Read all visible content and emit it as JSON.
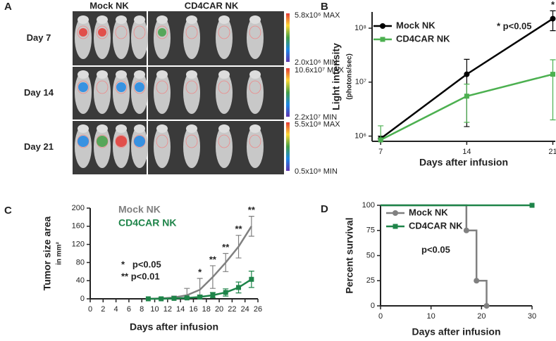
{
  "panel_a": {
    "letter": "A",
    "columns": [
      "Mock NK",
      "CD4CAR NK"
    ],
    "rows": [
      {
        "label": "Day 7",
        "max": "5.8x10⁶ MAX",
        "min": "2.0x10⁶ MIN"
      },
      {
        "label": "Day 14",
        "max": "10.6x10⁷ MAX",
        "min": "2.2x10⁷ MIN"
      },
      {
        "label": "Day 21",
        "max": "5.5x10⁸ MAX",
        "min": "0.5x10⁸ MIN"
      }
    ]
  },
  "chart_data": [
    {
      "panel": "B",
      "type": "line",
      "ylabel": "Light intensity",
      "ylabel_unit": "(photons/sec)",
      "xlabel": "Days after infusion",
      "log_y": true,
      "xlim": [
        6.3,
        21.2
      ],
      "xticks": [
        7,
        14,
        21
      ],
      "ylim": [
        800000,
        200000000
      ],
      "yticks": [
        {
          "value": 1000000,
          "label": "10⁶"
        },
        {
          "value": 10000000,
          "label": "10⁷"
        },
        {
          "value": 100000000,
          "label": "10⁸"
        }
      ],
      "legend": "upper left",
      "legend_style": "marker",
      "annotations": [
        "* p<0.05"
      ],
      "series": [
        {
          "name": "Mock NK",
          "color": "#000000",
          "marker": "circle",
          "x": [
            7,
            14,
            21
          ],
          "values": [
            900000,
            14000000,
            150000000
          ],
          "errors": [
            100000,
            12500000,
            60000000
          ],
          "significance": [
            null,
            null,
            "*"
          ]
        },
        {
          "name": "CD4CAR NK",
          "color": "#4cb050",
          "marker": "square",
          "x": [
            7,
            14,
            21
          ],
          "values": [
            850000,
            5500000,
            14000000
          ],
          "errors": [
            700000,
            3700000,
            12000000
          ]
        }
      ]
    },
    {
      "panel": "C",
      "type": "line",
      "ylabel": "Tumor size area",
      "ylabel_unit": "in mm²",
      "xlabel": "Days after infusion",
      "log_y": false,
      "xlim": [
        0,
        26
      ],
      "xticks": [
        0,
        2,
        4,
        6,
        8,
        10,
        12,
        14,
        16,
        18,
        20,
        22,
        24,
        26
      ],
      "ylim": [
        0,
        200
      ],
      "yticks": [
        0,
        40,
        80,
        120,
        160,
        200
      ],
      "legend": "upper left",
      "legend_style": "text",
      "annotations": [
        "*   p<0.05",
        "** p<0.01"
      ],
      "series": [
        {
          "name": "Mock NK",
          "color": "#808080",
          "marker": "none",
          "x": [
            9,
            11,
            13,
            15,
            17,
            19,
            21,
            23,
            25
          ],
          "values": [
            0,
            1,
            3,
            8,
            20,
            48,
            80,
            115,
            160
          ],
          "errors": [
            0,
            2,
            3,
            15,
            25,
            25,
            20,
            25,
            22
          ],
          "significance": [
            null,
            null,
            null,
            null,
            "*",
            "**",
            "**",
            "**",
            "**"
          ]
        },
        {
          "name": "CD4CAR NK",
          "color": "#1e8449",
          "marker": "square",
          "x": [
            9,
            11,
            13,
            15,
            17,
            19,
            21,
            23,
            25
          ],
          "values": [
            0,
            0,
            1,
            2,
            4,
            8,
            14,
            25,
            43
          ],
          "errors": [
            0,
            1,
            1,
            2,
            4,
            6,
            8,
            12,
            18
          ]
        }
      ]
    },
    {
      "panel": "D",
      "type": "step",
      "ylabel": "Percent survival",
      "xlabel": "Days after infusion",
      "log_y": false,
      "xlim": [
        0,
        30
      ],
      "xticks": [
        0,
        10,
        20,
        30
      ],
      "ylim": [
        0,
        100
      ],
      "yticks": [
        0,
        25,
        50,
        75,
        100
      ],
      "legend": "upper left",
      "legend_style": "marker",
      "annotations": [
        "p<0.05"
      ],
      "series": [
        {
          "name": "Mock NK",
          "color": "#808080",
          "marker": "circle",
          "x": [
            0,
            17,
            19,
            21
          ],
          "values": [
            100,
            75,
            25,
            0
          ]
        },
        {
          "name": "CD4CAR NK",
          "color": "#1e8449",
          "marker": "square",
          "x": [
            0,
            30
          ],
          "values": [
            100,
            100
          ]
        }
      ]
    }
  ]
}
